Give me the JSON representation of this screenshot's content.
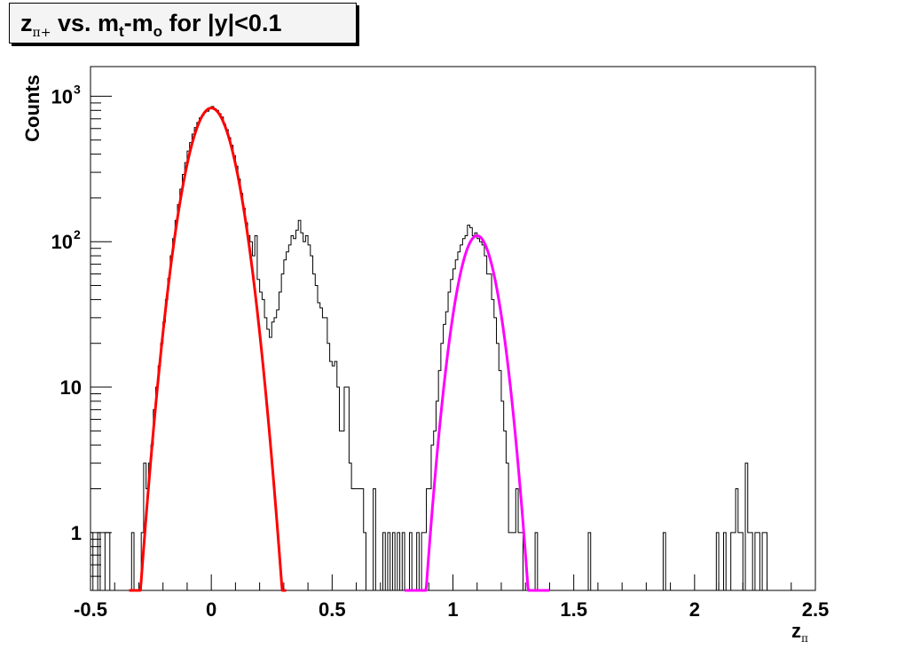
{
  "title": {
    "z": "z",
    "pi_plus": "π+",
    "mid": " vs. m",
    "t": "t",
    "dash": "-m",
    "o": "o",
    "tail": " for |y|<0.1"
  },
  "axis_labels": {
    "x_main": "z",
    "x_sub": "π",
    "y": "Counts"
  },
  "chart_data": {
    "type": "histogram",
    "title": "z_π+ vs. m_t-m_o for |y|<0.1",
    "xlabel": "z_π",
    "ylabel": "Counts",
    "xlim": [
      -0.5,
      2.5
    ],
    "ylim": [
      0.4,
      1600
    ],
    "yscale": "log",
    "grid": false,
    "x_ticks": [
      "-0.5",
      "0",
      "0.5",
      "1",
      "1.5",
      "2",
      "2.5"
    ],
    "y_ticks": [
      {
        "value": 1,
        "label": "1",
        "exp": ""
      },
      {
        "value": 10,
        "label": "10",
        "exp": ""
      },
      {
        "value": 100,
        "label": "10",
        "exp": "2"
      },
      {
        "value": 1000,
        "label": "10",
        "exp": "3"
      }
    ],
    "histogram": {
      "bin_width": 0.01,
      "bins": [
        {
          "x": -0.5,
          "y": 1
        },
        {
          "x": -0.47,
          "y": 1
        },
        {
          "x": -0.44,
          "y": 1
        },
        {
          "x": -0.43,
          "y": 1
        },
        {
          "x": -0.33,
          "y": 1
        },
        {
          "x": -0.29,
          "y": 1
        },
        {
          "x": -0.28,
          "y": 3
        },
        {
          "x": -0.27,
          "y": 2
        },
        {
          "x": -0.26,
          "y": 3
        },
        {
          "x": -0.25,
          "y": 4
        },
        {
          "x": -0.24,
          "y": 7
        },
        {
          "x": -0.23,
          "y": 10
        },
        {
          "x": -0.22,
          "y": 14
        },
        {
          "x": -0.21,
          "y": 20
        },
        {
          "x": -0.2,
          "y": 28
        },
        {
          "x": -0.19,
          "y": 40
        },
        {
          "x": -0.18,
          "y": 56
        },
        {
          "x": -0.17,
          "y": 80
        },
        {
          "x": -0.16,
          "y": 105
        },
        {
          "x": -0.15,
          "y": 140
        },
        {
          "x": -0.14,
          "y": 180
        },
        {
          "x": -0.13,
          "y": 230
        },
        {
          "x": -0.12,
          "y": 290
        },
        {
          "x": -0.11,
          "y": 350
        },
        {
          "x": -0.1,
          "y": 420
        },
        {
          "x": -0.09,
          "y": 480
        },
        {
          "x": -0.08,
          "y": 550
        },
        {
          "x": -0.07,
          "y": 610
        },
        {
          "x": -0.06,
          "y": 660
        },
        {
          "x": -0.05,
          "y": 710
        },
        {
          "x": -0.04,
          "y": 740
        },
        {
          "x": -0.03,
          "y": 780
        },
        {
          "x": -0.02,
          "y": 790
        },
        {
          "x": -0.01,
          "y": 830
        },
        {
          "x": 0.0,
          "y": 850
        },
        {
          "x": 0.01,
          "y": 820
        },
        {
          "x": 0.02,
          "y": 800
        },
        {
          "x": 0.03,
          "y": 760
        },
        {
          "x": 0.04,
          "y": 720
        },
        {
          "x": 0.05,
          "y": 640
        },
        {
          "x": 0.06,
          "y": 590
        },
        {
          "x": 0.07,
          "y": 520
        },
        {
          "x": 0.08,
          "y": 460
        },
        {
          "x": 0.09,
          "y": 390
        },
        {
          "x": 0.1,
          "y": 330
        },
        {
          "x": 0.11,
          "y": 270
        },
        {
          "x": 0.12,
          "y": 215
        },
        {
          "x": 0.13,
          "y": 170
        },
        {
          "x": 0.14,
          "y": 135
        },
        {
          "x": 0.15,
          "y": 110
        },
        {
          "x": 0.16,
          "y": 100
        },
        {
          "x": 0.17,
          "y": 80
        },
        {
          "x": 0.18,
          "y": 110
        },
        {
          "x": 0.19,
          "y": 55
        },
        {
          "x": 0.2,
          "y": 45
        },
        {
          "x": 0.21,
          "y": 40
        },
        {
          "x": 0.22,
          "y": 30
        },
        {
          "x": 0.23,
          "y": 25
        },
        {
          "x": 0.24,
          "y": 22
        },
        {
          "x": 0.25,
          "y": 28
        },
        {
          "x": 0.26,
          "y": 30
        },
        {
          "x": 0.27,
          "y": 34
        },
        {
          "x": 0.28,
          "y": 45
        },
        {
          "x": 0.29,
          "y": 60
        },
        {
          "x": 0.3,
          "y": 75
        },
        {
          "x": 0.31,
          "y": 85
        },
        {
          "x": 0.32,
          "y": 95
        },
        {
          "x": 0.33,
          "y": 110
        },
        {
          "x": 0.34,
          "y": 105
        },
        {
          "x": 0.35,
          "y": 120
        },
        {
          "x": 0.36,
          "y": 140
        },
        {
          "x": 0.37,
          "y": 115
        },
        {
          "x": 0.38,
          "y": 100
        },
        {
          "x": 0.39,
          "y": 110
        },
        {
          "x": 0.4,
          "y": 95
        },
        {
          "x": 0.41,
          "y": 80
        },
        {
          "x": 0.42,
          "y": 60
        },
        {
          "x": 0.43,
          "y": 50
        },
        {
          "x": 0.44,
          "y": 38
        },
        {
          "x": 0.45,
          "y": 35
        },
        {
          "x": 0.46,
          "y": 30
        },
        {
          "x": 0.47,
          "y": 30
        },
        {
          "x": 0.48,
          "y": 20
        },
        {
          "x": 0.49,
          "y": 15
        },
        {
          "x": 0.5,
          "y": 14
        },
        {
          "x": 0.51,
          "y": 15
        },
        {
          "x": 0.52,
          "y": 10
        },
        {
          "x": 0.53,
          "y": 5
        },
        {
          "x": 0.54,
          "y": 5
        },
        {
          "x": 0.55,
          "y": 10
        },
        {
          "x": 0.56,
          "y": 10
        },
        {
          "x": 0.57,
          "y": 3
        },
        {
          "x": 0.58,
          "y": 2
        },
        {
          "x": 0.59,
          "y": 2
        },
        {
          "x": 0.6,
          "y": 2
        },
        {
          "x": 0.61,
          "y": 2
        },
        {
          "x": 0.62,
          "y": 2
        },
        {
          "x": 0.63,
          "y": 1
        },
        {
          "x": 0.67,
          "y": 2
        },
        {
          "x": 0.71,
          "y": 1
        },
        {
          "x": 0.73,
          "y": 1
        },
        {
          "x": 0.75,
          "y": 1
        },
        {
          "x": 0.77,
          "y": 1
        },
        {
          "x": 0.79,
          "y": 1
        },
        {
          "x": 0.82,
          "y": 1
        },
        {
          "x": 0.85,
          "y": 1
        },
        {
          "x": 0.87,
          "y": 1
        },
        {
          "x": 0.88,
          "y": 1
        },
        {
          "x": 0.89,
          "y": 2
        },
        {
          "x": 0.9,
          "y": 2
        },
        {
          "x": 0.91,
          "y": 4
        },
        {
          "x": 0.92,
          "y": 5
        },
        {
          "x": 0.93,
          "y": 8
        },
        {
          "x": 0.94,
          "y": 13
        },
        {
          "x": 0.95,
          "y": 20
        },
        {
          "x": 0.96,
          "y": 27
        },
        {
          "x": 0.97,
          "y": 33
        },
        {
          "x": 0.98,
          "y": 45
        },
        {
          "x": 0.99,
          "y": 55
        },
        {
          "x": 1.0,
          "y": 65
        },
        {
          "x": 1.01,
          "y": 75
        },
        {
          "x": 1.02,
          "y": 85
        },
        {
          "x": 1.03,
          "y": 95
        },
        {
          "x": 1.04,
          "y": 105
        },
        {
          "x": 1.05,
          "y": 110
        },
        {
          "x": 1.06,
          "y": 130
        },
        {
          "x": 1.07,
          "y": 125
        },
        {
          "x": 1.08,
          "y": 110
        },
        {
          "x": 1.09,
          "y": 115
        },
        {
          "x": 1.1,
          "y": 105
        },
        {
          "x": 1.11,
          "y": 100
        },
        {
          "x": 1.12,
          "y": 95
        },
        {
          "x": 1.13,
          "y": 80
        },
        {
          "x": 1.14,
          "y": 60
        },
        {
          "x": 1.15,
          "y": 60
        },
        {
          "x": 1.16,
          "y": 40
        },
        {
          "x": 1.17,
          "y": 30
        },
        {
          "x": 1.18,
          "y": 20
        },
        {
          "x": 1.19,
          "y": 13
        },
        {
          "x": 1.2,
          "y": 8
        },
        {
          "x": 1.21,
          "y": 5
        },
        {
          "x": 1.22,
          "y": 3
        },
        {
          "x": 1.23,
          "y": 1
        },
        {
          "x": 1.24,
          "y": 1
        },
        {
          "x": 1.25,
          "y": 1
        },
        {
          "x": 1.26,
          "y": 2
        },
        {
          "x": 1.27,
          "y": 1
        },
        {
          "x": 1.28,
          "y": 1
        },
        {
          "x": 1.34,
          "y": 1
        },
        {
          "x": 1.56,
          "y": 1
        },
        {
          "x": 1.87,
          "y": 1
        },
        {
          "x": 2.09,
          "y": 1
        },
        {
          "x": 2.12,
          "y": 1
        },
        {
          "x": 2.15,
          "y": 1
        },
        {
          "x": 2.16,
          "y": 1
        },
        {
          "x": 2.17,
          "y": 2
        },
        {
          "x": 2.18,
          "y": 1
        },
        {
          "x": 2.19,
          "y": 1
        },
        {
          "x": 2.21,
          "y": 3
        },
        {
          "x": 2.22,
          "y": 1
        },
        {
          "x": 2.23,
          "y": 1
        },
        {
          "x": 2.25,
          "y": 1
        },
        {
          "x": 2.26,
          "y": 1
        },
        {
          "x": 2.28,
          "y": 1
        },
        {
          "x": 2.29,
          "y": 1
        }
      ]
    },
    "fits": [
      {
        "color": "#ff0000",
        "amplitude": 830,
        "mean": 0.0,
        "sigma": 0.075,
        "range": [
          -0.34,
          0.31
        ]
      },
      {
        "color": "#ff00ff",
        "amplitude": 110,
        "mean": 1.1,
        "sigma": 0.063,
        "range": [
          0.8,
          1.4
        ]
      }
    ]
  },
  "colors": {
    "histogram": "#000000",
    "fit_pi": "#ff0000",
    "fit_p": "#ff00ff",
    "background": "#ffffff"
  }
}
